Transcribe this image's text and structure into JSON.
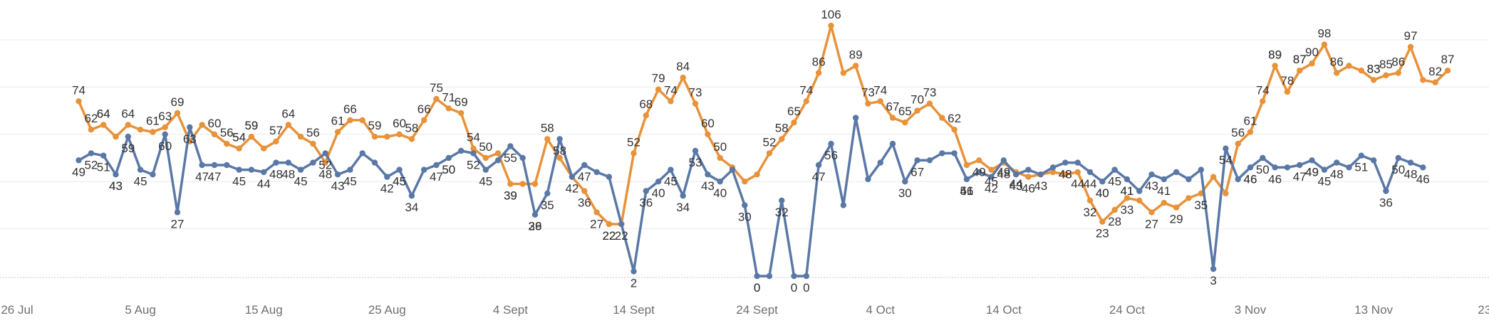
{
  "chart_data": {
    "type": "line",
    "title": "",
    "xlabel": "",
    "ylabel": "",
    "grid": true,
    "legend": "none",
    "x_ticks": [
      "26 Jul",
      "5 Aug",
      "15 Aug",
      "25 Aug",
      "4 Sept",
      "14 Sept",
      "24 Sept",
      "4 Oct",
      "14 Oct",
      "24 Oct",
      "3 Nov",
      "13 Nov",
      "23 Nov"
    ],
    "series": [
      {
        "color": "#E8923A",
        "points": [
          {
            "x": "2024-07-31",
            "y": 74
          },
          {
            "x": "2024-08-01",
            "y": 62
          },
          {
            "x": "2024-08-02",
            "y": 64
          },
          {
            "x": "2024-08-03",
            "y": 59
          },
          {
            "x": "2024-08-04",
            "y": 64
          },
          {
            "x": "2024-08-05",
            "y": 62
          },
          {
            "x": "2024-08-06",
            "y": 61
          },
          {
            "x": "2024-08-07",
            "y": 63
          },
          {
            "x": "2024-08-08",
            "y": 69
          },
          {
            "x": "2024-08-09",
            "y": 57
          },
          {
            "x": "2024-08-10",
            "y": 64
          },
          {
            "x": "2024-08-11",
            "y": 60
          },
          {
            "x": "2024-08-12",
            "y": 56
          },
          {
            "x": "2024-08-13",
            "y": 54
          },
          {
            "x": "2024-08-14",
            "y": 59
          },
          {
            "x": "2024-08-15",
            "y": 54
          },
          {
            "x": "2024-08-16",
            "y": 57
          },
          {
            "x": "2024-08-17",
            "y": 64
          },
          {
            "x": "2024-08-18",
            "y": 59
          },
          {
            "x": "2024-08-19",
            "y": 56
          },
          {
            "x": "2024-08-20",
            "y": 48
          },
          {
            "x": "2024-08-21",
            "y": 61
          },
          {
            "x": "2024-08-22",
            "y": 66
          },
          {
            "x": "2024-08-23",
            "y": 66
          },
          {
            "x": "2024-08-24",
            "y": 59
          },
          {
            "x": "2024-08-25",
            "y": 59
          },
          {
            "x": "2024-08-26",
            "y": 60
          },
          {
            "x": "2024-08-27",
            "y": 58
          },
          {
            "x": "2024-08-28",
            "y": 66
          },
          {
            "x": "2024-08-29",
            "y": 75
          },
          {
            "x": "2024-08-30",
            "y": 71
          },
          {
            "x": "2024-08-31",
            "y": 69
          },
          {
            "x": "2024-09-01",
            "y": 54
          },
          {
            "x": "2024-09-02",
            "y": 50
          },
          {
            "x": "2024-09-03",
            "y": 52
          },
          {
            "x": "2024-09-04",
            "y": 39
          },
          {
            "x": "2024-09-05",
            "y": 39
          },
          {
            "x": "2024-09-06",
            "y": 39
          },
          {
            "x": "2024-09-07",
            "y": 58
          },
          {
            "x": "2024-09-08",
            "y": 50
          },
          {
            "x": "2024-09-09",
            "y": 42
          },
          {
            "x": "2024-09-10",
            "y": 36
          },
          {
            "x": "2024-09-11",
            "y": 27
          },
          {
            "x": "2024-09-12",
            "y": 22
          },
          {
            "x": "2024-09-13",
            "y": 22
          },
          {
            "x": "2024-09-14",
            "y": 52
          },
          {
            "x": "2024-09-15",
            "y": 68
          },
          {
            "x": "2024-09-16",
            "y": 79
          },
          {
            "x": "2024-09-17",
            "y": 74
          },
          {
            "x": "2024-09-18",
            "y": 84
          },
          {
            "x": "2024-09-19",
            "y": 73
          },
          {
            "x": "2024-09-20",
            "y": 60
          },
          {
            "x": "2024-09-21",
            "y": 50
          },
          {
            "x": "2024-09-22",
            "y": 46
          },
          {
            "x": "2024-09-23",
            "y": 40
          },
          {
            "x": "2024-09-24",
            "y": 43
          },
          {
            "x": "2024-09-25",
            "y": 52
          },
          {
            "x": "2024-09-26",
            "y": 58
          },
          {
            "x": "2024-09-27",
            "y": 65
          },
          {
            "x": "2024-09-28",
            "y": 74
          },
          {
            "x": "2024-09-29",
            "y": 86
          },
          {
            "x": "2024-09-30",
            "y": 106
          },
          {
            "x": "2024-10-01",
            "y": 86
          },
          {
            "x": "2024-10-02",
            "y": 89
          },
          {
            "x": "2024-10-03",
            "y": 73
          },
          {
            "x": "2024-10-04",
            "y": 74
          },
          {
            "x": "2024-10-05",
            "y": 67
          },
          {
            "x": "2024-10-06",
            "y": 65
          },
          {
            "x": "2024-10-07",
            "y": 70
          },
          {
            "x": "2024-10-08",
            "y": 73
          },
          {
            "x": "2024-10-09",
            "y": 67
          },
          {
            "x": "2024-10-10",
            "y": 62
          },
          {
            "x": "2024-10-11",
            "y": 47
          },
          {
            "x": "2024-10-12",
            "y": 49
          },
          {
            "x": "2024-10-13",
            "y": 45
          },
          {
            "x": "2024-10-14",
            "y": 48
          },
          {
            "x": "2024-10-15",
            "y": 44
          },
          {
            "x": "2024-10-16",
            "y": 42
          },
          {
            "x": "2024-10-17",
            "y": 43
          },
          {
            "x": "2024-10-18",
            "y": 44
          },
          {
            "x": "2024-10-19",
            "y": 43
          },
          {
            "x": "2024-10-20",
            "y": 44
          },
          {
            "x": "2024-10-21",
            "y": 32
          },
          {
            "x": "2024-10-22",
            "y": 23
          },
          {
            "x": "2024-10-23",
            "y": 28
          },
          {
            "x": "2024-10-24",
            "y": 33
          },
          {
            "x": "2024-10-25",
            "y": 32
          },
          {
            "x": "2024-10-26",
            "y": 27
          },
          {
            "x": "2024-10-27",
            "y": 31
          },
          {
            "x": "2024-10-28",
            "y": 29
          },
          {
            "x": "2024-10-29",
            "y": 33
          },
          {
            "x": "2024-10-30",
            "y": 35
          },
          {
            "x": "2024-10-31",
            "y": 42
          },
          {
            "x": "2024-11-01",
            "y": 35
          },
          {
            "x": "2024-11-02",
            "y": 56
          },
          {
            "x": "2024-11-03",
            "y": 61
          },
          {
            "x": "2024-11-04",
            "y": 74
          },
          {
            "x": "2024-11-05",
            "y": 89
          },
          {
            "x": "2024-11-06",
            "y": 78
          },
          {
            "x": "2024-11-07",
            "y": 87
          },
          {
            "x": "2024-11-08",
            "y": 90
          },
          {
            "x": "2024-11-09",
            "y": 98
          },
          {
            "x": "2024-11-10",
            "y": 86
          },
          {
            "x": "2024-11-11",
            "y": 89
          },
          {
            "x": "2024-11-12",
            "y": 87
          },
          {
            "x": "2024-11-13",
            "y": 83
          },
          {
            "x": "2024-11-14",
            "y": 85
          },
          {
            "x": "2024-11-15",
            "y": 86
          },
          {
            "x": "2024-11-16",
            "y": 97
          },
          {
            "x": "2024-11-17",
            "y": 83
          },
          {
            "x": "2024-11-18",
            "y": 82
          },
          {
            "x": "2024-11-19",
            "y": 87
          }
        ]
      },
      {
        "color": "#5A78A6",
        "points": [
          {
            "x": "2024-07-31",
            "y": 49
          },
          {
            "x": "2024-08-01",
            "y": 52
          },
          {
            "x": "2024-08-02",
            "y": 51
          },
          {
            "x": "2024-08-03",
            "y": 43
          },
          {
            "x": "2024-08-04",
            "y": 59
          },
          {
            "x": "2024-08-05",
            "y": 45
          },
          {
            "x": "2024-08-06",
            "y": 43
          },
          {
            "x": "2024-08-07",
            "y": 60
          },
          {
            "x": "2024-08-08",
            "y": 27
          },
          {
            "x": "2024-08-09",
            "y": 63
          },
          {
            "x": "2024-08-10",
            "y": 47
          },
          {
            "x": "2024-08-11",
            "y": 47
          },
          {
            "x": "2024-08-12",
            "y": 47
          },
          {
            "x": "2024-08-13",
            "y": 45
          },
          {
            "x": "2024-08-14",
            "y": 45
          },
          {
            "x": "2024-08-15",
            "y": 44
          },
          {
            "x": "2024-08-16",
            "y": 48
          },
          {
            "x": "2024-08-17",
            "y": 48
          },
          {
            "x": "2024-08-18",
            "y": 45
          },
          {
            "x": "2024-08-19",
            "y": 48
          },
          {
            "x": "2024-08-20",
            "y": 52
          },
          {
            "x": "2024-08-21",
            "y": 43
          },
          {
            "x": "2024-08-22",
            "y": 45
          },
          {
            "x": "2024-08-23",
            "y": 52
          },
          {
            "x": "2024-08-24",
            "y": 48
          },
          {
            "x": "2024-08-25",
            "y": 42
          },
          {
            "x": "2024-08-26",
            "y": 45
          },
          {
            "x": "2024-08-27",
            "y": 34
          },
          {
            "x": "2024-08-28",
            "y": 45
          },
          {
            "x": "2024-08-29",
            "y": 47
          },
          {
            "x": "2024-08-30",
            "y": 50
          },
          {
            "x": "2024-08-31",
            "y": 53
          },
          {
            "x": "2024-09-01",
            "y": 52
          },
          {
            "x": "2024-09-02",
            "y": 45
          },
          {
            "x": "2024-09-03",
            "y": 49
          },
          {
            "x": "2024-09-04",
            "y": 55
          },
          {
            "x": "2024-09-05",
            "y": 50
          },
          {
            "x": "2024-09-06",
            "y": 26
          },
          {
            "x": "2024-09-07",
            "y": 35
          },
          {
            "x": "2024-09-08",
            "y": 58
          },
          {
            "x": "2024-09-09",
            "y": 42
          },
          {
            "x": "2024-09-10",
            "y": 47
          },
          {
            "x": "2024-09-11",
            "y": 44
          },
          {
            "x": "2024-09-12",
            "y": 42
          },
          {
            "x": "2024-09-13",
            "y": 22
          },
          {
            "x": "2024-09-14",
            "y": 2
          },
          {
            "x": "2024-09-15",
            "y": 36
          },
          {
            "x": "2024-09-16",
            "y": 40
          },
          {
            "x": "2024-09-17",
            "y": 45
          },
          {
            "x": "2024-09-18",
            "y": 34
          },
          {
            "x": "2024-09-19",
            "y": 53
          },
          {
            "x": "2024-09-20",
            "y": 43
          },
          {
            "x": "2024-09-21",
            "y": 40
          },
          {
            "x": "2024-09-22",
            "y": 45
          },
          {
            "x": "2024-09-23",
            "y": 30
          },
          {
            "x": "2024-09-24",
            "y": 0
          },
          {
            "x": "2024-09-25",
            "y": 0
          },
          {
            "x": "2024-09-26",
            "y": 32
          },
          {
            "x": "2024-09-27",
            "y": 0
          },
          {
            "x": "2024-09-28",
            "y": 0
          },
          {
            "x": "2024-09-29",
            "y": 47
          },
          {
            "x": "2024-09-30",
            "y": 56
          },
          {
            "x": "2024-10-01",
            "y": 30
          },
          {
            "x": "2024-10-02",
            "y": 67
          },
          {
            "x": "2024-10-03",
            "y": 41
          },
          {
            "x": "2024-10-04",
            "y": 48
          },
          {
            "x": "2024-10-05",
            "y": 56
          },
          {
            "x": "2024-10-06",
            "y": 40
          },
          {
            "x": "2024-10-07",
            "y": 49
          },
          {
            "x": "2024-10-08",
            "y": 49
          },
          {
            "x": "2024-10-09",
            "y": 52
          },
          {
            "x": "2024-10-10",
            "y": 52
          },
          {
            "x": "2024-10-11",
            "y": 41
          },
          {
            "x": "2024-10-12",
            "y": 44
          },
          {
            "x": "2024-10-13",
            "y": 42
          },
          {
            "x": "2024-10-14",
            "y": 49
          },
          {
            "x": "2024-10-15",
            "y": 43
          },
          {
            "x": "2024-10-16",
            "y": 45
          },
          {
            "x": "2024-10-17",
            "y": 43
          },
          {
            "x": "2024-10-18",
            "y": 46
          },
          {
            "x": "2024-10-19",
            "y": 48
          },
          {
            "x": "2024-10-20",
            "y": 48
          },
          {
            "x": "2024-10-21",
            "y": 44
          },
          {
            "x": "2024-10-22",
            "y": 40
          },
          {
            "x": "2024-10-23",
            "y": 45
          },
          {
            "x": "2024-10-24",
            "y": 41
          },
          {
            "x": "2024-10-25",
            "y": 36
          },
          {
            "x": "2024-10-26",
            "y": 43
          },
          {
            "x": "2024-10-27",
            "y": 41
          },
          {
            "x": "2024-10-28",
            "y": 44
          },
          {
            "x": "2024-10-29",
            "y": 41
          },
          {
            "x": "2024-10-30",
            "y": 45
          },
          {
            "x": "2024-10-31",
            "y": 3
          },
          {
            "x": "2024-11-01",
            "y": 54
          },
          {
            "x": "2024-11-02",
            "y": 41
          },
          {
            "x": "2024-11-03",
            "y": 46
          },
          {
            "x": "2024-11-04",
            "y": 50
          },
          {
            "x": "2024-11-05",
            "y": 46
          },
          {
            "x": "2024-11-06",
            "y": 46
          },
          {
            "x": "2024-11-07",
            "y": 47
          },
          {
            "x": "2024-11-08",
            "y": 49
          },
          {
            "x": "2024-11-09",
            "y": 45
          },
          {
            "x": "2024-11-10",
            "y": 48
          },
          {
            "x": "2024-11-11",
            "y": 46
          },
          {
            "x": "2024-11-12",
            "y": 51
          },
          {
            "x": "2024-11-13",
            "y": 49
          },
          {
            "x": "2024-11-14",
            "y": 36
          },
          {
            "x": "2024-11-15",
            "y": 50
          },
          {
            "x": "2024-11-16",
            "y": 48
          },
          {
            "x": "2024-11-17",
            "y": 46
          }
        ]
      }
    ],
    "labels": {
      "orange": [
        74,
        62,
        64,
        64,
        61,
        63,
        69,
        64,
        60,
        56,
        54,
        59,
        57,
        54,
        59,
        64,
        56,
        48,
        61,
        66,
        59,
        60,
        58,
        66,
        75,
        71,
        69,
        54,
        50,
        39,
        39,
        58,
        42,
        36,
        27,
        22,
        44,
        52,
        22,
        68,
        79,
        74,
        84,
        73,
        60,
        50,
        52,
        58,
        65,
        74,
        86,
        106,
        89,
        73,
        74,
        70,
        65,
        73,
        67,
        62,
        49,
        48,
        43,
        45,
        46,
        44,
        32,
        23,
        28,
        44,
        27,
        29,
        33,
        35,
        56,
        61,
        74,
        89,
        87,
        78,
        90,
        98,
        86,
        89,
        87,
        83,
        85,
        97,
        86,
        83,
        82,
        87
      ],
      "blue": [
        49,
        52,
        51,
        43,
        59,
        45,
        43,
        60,
        27,
        63,
        50,
        47,
        47,
        45,
        44,
        48,
        45,
        48,
        52,
        43,
        45,
        42,
        45,
        34,
        45,
        47,
        50,
        52,
        45,
        55,
        39,
        26,
        35,
        58,
        47,
        22,
        2,
        36,
        40,
        45,
        34,
        53,
        43,
        40,
        30,
        0,
        0,
        43,
        32,
        0,
        0,
        47,
        56,
        30,
        67,
        41,
        48,
        56,
        40,
        49,
        41,
        42,
        43,
        44,
        40,
        48,
        45,
        41,
        43,
        41,
        3,
        54,
        41,
        46,
        50,
        46,
        47,
        49,
        45,
        48,
        46,
        51,
        49,
        36,
        50,
        48,
        46
      ]
    }
  }
}
